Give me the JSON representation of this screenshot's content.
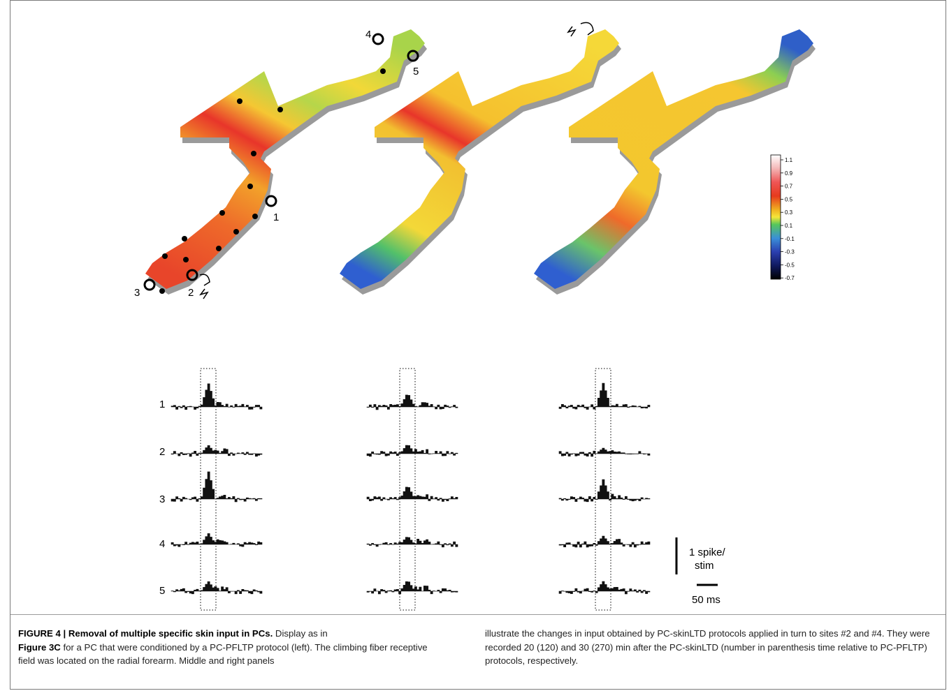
{
  "figure": {
    "label": "FIGURE 4 |",
    "title": "Removal of multiple specific skin input in PCs.",
    "caption_left_part1": "Display as in",
    "caption_left_ref": "Figure 3C",
    "caption_left_part2": "for a PC that were conditioned by a PC-PFLTP protocol (left). The climbing fiber receptive field was located on the radial forearm. Middle and right panels",
    "caption_right": "illustrate the changes in input obtained by PC-skinLTD protocols applied in turn to sites #2 and #4. They were recorded 20 (120) and 30 (270) min after the PC-skinLTD (number in parenthesis time relative to PC-PFLTP) protocols, respectively."
  },
  "map_labels": {
    "site_1": "1",
    "site_2": "2",
    "site_3": "3",
    "site_4": "4",
    "site_5": "5"
  },
  "colorbar": {
    "ticks": [
      "1.1",
      "0.9",
      "0.7",
      "0.5",
      "0.3",
      "0.1",
      "-0.1",
      "-0.3",
      "-0.5",
      "-0.7"
    ],
    "colors": [
      "#ffffff",
      "#f4b6b6",
      "#ef5555",
      "#e63a1e",
      "#f0b020",
      "#f5e63a",
      "#56c65a",
      "#3a8fd8",
      "#2b3fb0",
      "#000000"
    ]
  },
  "histograms": {
    "row_labels": [
      "1",
      "2",
      "3",
      "4",
      "5"
    ],
    "scale_y_line1": "1 spike/",
    "scale_y_line2": "stim",
    "scale_x": "50 ms"
  }
}
